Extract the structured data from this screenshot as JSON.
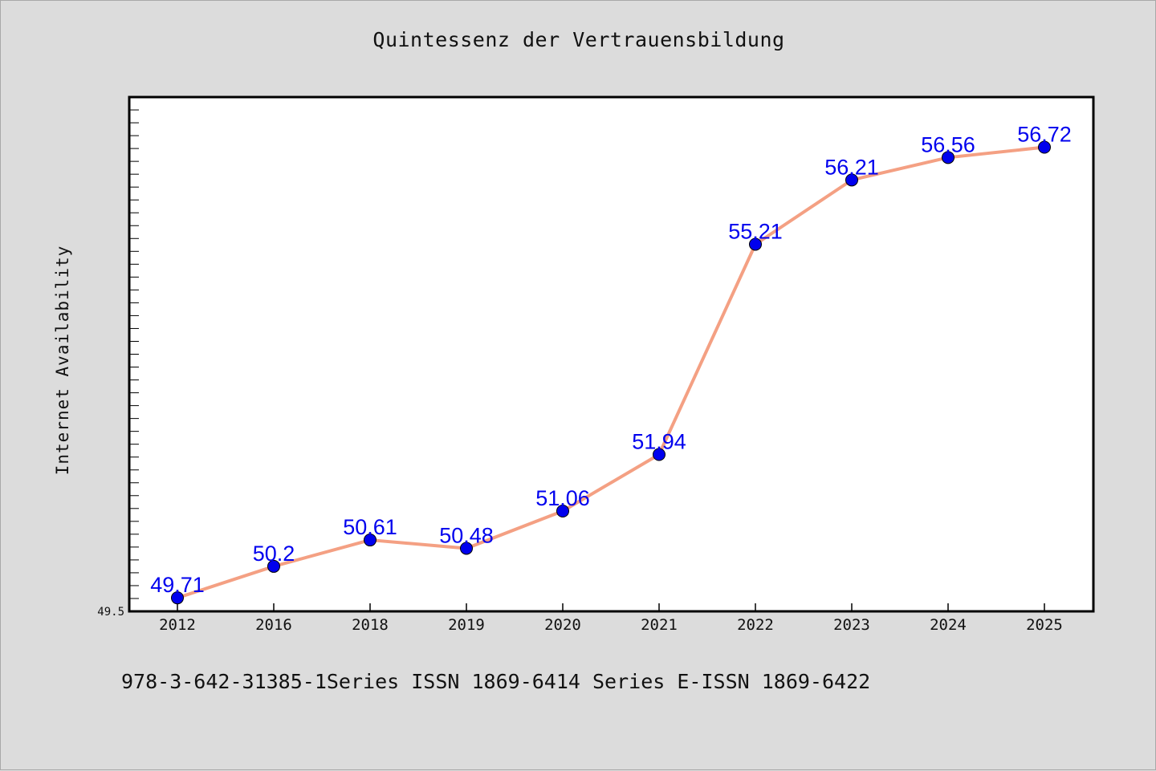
{
  "chart_data": {
    "type": "line",
    "title": "Quintessenz der Vertrauensbildung",
    "xlabel": "",
    "ylabel": "Internet Availability",
    "categories": [
      "2012",
      "2016",
      "2018",
      "2019",
      "2020",
      "2021",
      "2022",
      "2023",
      "2024",
      "2025"
    ],
    "series": [
      {
        "values": [
          49.71,
          50.2,
          50.61,
          50.48,
          51.06,
          51.94,
          55.21,
          56.21,
          56.56,
          56.72
        ],
        "labels": [
          "49.71",
          "50.2",
          "50.61",
          "50.48",
          "51.06",
          "51.94",
          "55.21",
          "56.21",
          "56.56",
          "56.72"
        ],
        "line_color": "#f4a083",
        "marker_color": "#0000ee"
      }
    ],
    "ylim": [
      49.5,
      57.5
    ],
    "yticks_labeled": [
      "49.5"
    ],
    "grid": false,
    "legend": "none"
  },
  "caption": "978-3-642-31385-1Series ISSN 1869-6414 Series E-ISSN 1869-6422"
}
